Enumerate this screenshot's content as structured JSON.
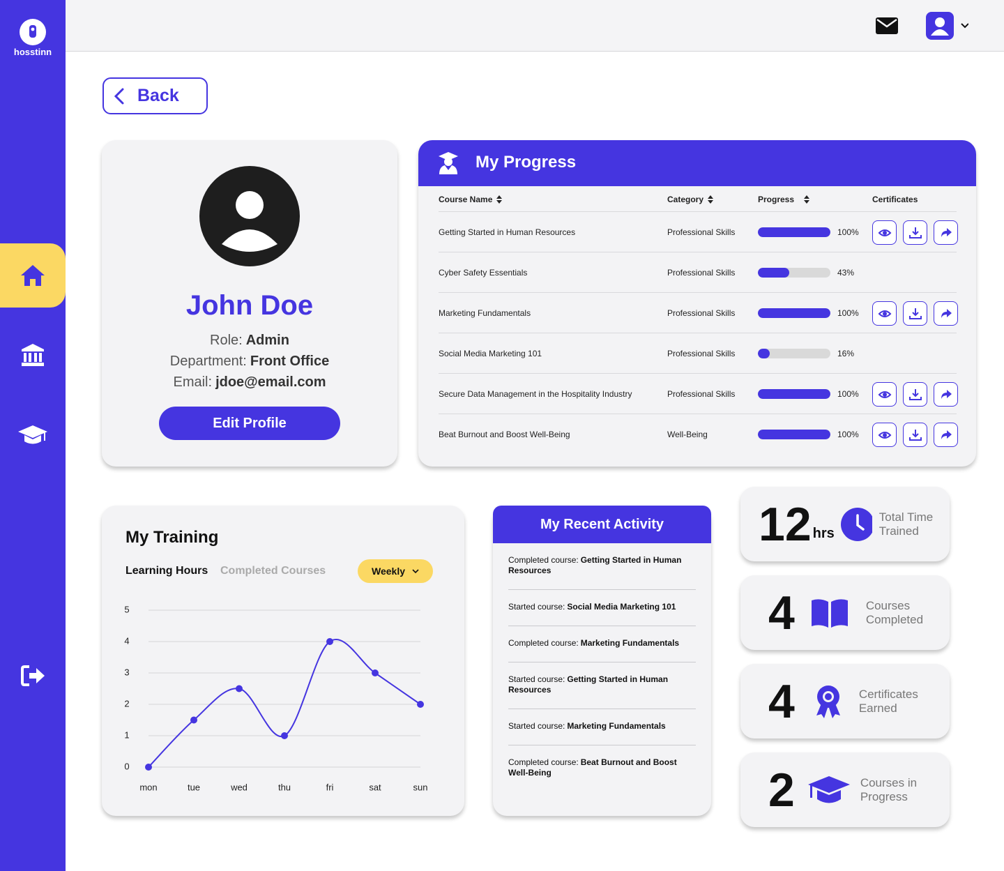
{
  "brand": "hosstinn",
  "back": "Back",
  "profile": {
    "name": "John Doe",
    "fields": [
      {
        "label": "Role:",
        "value": "Admin"
      },
      {
        "label": "Department:",
        "value": "Front Office"
      },
      {
        "label": "Email:",
        "value": "jdoe@email.com"
      }
    ],
    "button": "Edit Profile"
  },
  "progress": {
    "title": "My Progress",
    "columns": [
      "Course Name",
      "Category",
      "Progress",
      "Certificates"
    ],
    "rows": [
      {
        "course": "Getting Started in Human Resources",
        "category": "Professional Skills",
        "progress": 100,
        "progress_label": "100%",
        "certificate": true
      },
      {
        "course": "Cyber Safety Essentials",
        "category": "Professional Skills",
        "progress": 43,
        "progress_label": "43%",
        "certificate": false
      },
      {
        "course": "Marketing Fundamentals",
        "category": "Professional Skills",
        "progress": 100,
        "progress_label": "100%",
        "certificate": true
      },
      {
        "course": "Social Media Marketing 101",
        "category": "Professional Skills",
        "progress": 16,
        "progress_label": "16%",
        "certificate": false
      },
      {
        "course": "Secure Data Management in the Hospitality Industry",
        "category": "Professional Skills",
        "progress": 100,
        "progress_label": "100%",
        "certificate": true
      },
      {
        "course": "Beat Burnout and Boost Well-Being",
        "category": "Well-Being",
        "progress": 100,
        "progress_label": "100%",
        "certificate": true
      }
    ]
  },
  "chart_data": {
    "type": "line",
    "title": "My Training",
    "tabs": [
      "Learning Hours",
      "Completed Courses"
    ],
    "period": "Weekly",
    "categories": [
      "mon",
      "tue",
      "wed",
      "thu",
      "fri",
      "sat",
      "sun"
    ],
    "values": [
      0,
      1.5,
      2.5,
      1,
      4,
      3,
      2
    ],
    "ylim": [
      0,
      5
    ],
    "yticks": [
      0,
      1,
      2,
      3,
      4,
      5
    ],
    "color": "#4535e0",
    "grid": true
  },
  "activity": {
    "title": "My Recent Activity",
    "items": [
      {
        "action": "Completed course:",
        "course": "Getting Started in Human Resources"
      },
      {
        "action": "Started course:",
        "course": "Social Media Marketing 101"
      },
      {
        "action": "Completed course:",
        "course": "Marketing Fundamentals"
      },
      {
        "action": "Started course:",
        "course": "Getting Started in Human Resources"
      },
      {
        "action": "Started course:",
        "course": "Marketing Fundamentals"
      },
      {
        "action": "Completed course:",
        "course": "Beat Burnout and Boost Well-Being"
      }
    ]
  },
  "stats": [
    {
      "value": 12,
      "unit": "hrs",
      "label": "Total Time Trained"
    },
    {
      "value": 4,
      "label": "Courses Completed"
    },
    {
      "value": 4,
      "label": "Certificates Earned"
    },
    {
      "value": 2,
      "label": "Courses in Progress"
    }
  ]
}
